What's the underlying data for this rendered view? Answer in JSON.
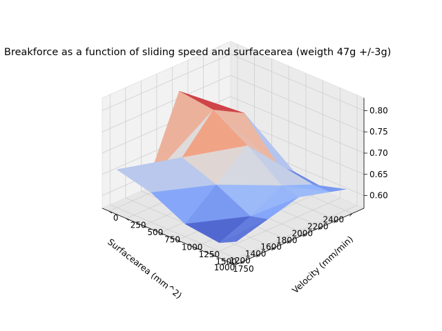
{
  "chart_data": {
    "type": "surface",
    "title": "Breakforce as a function of sliding speed and surfacearea (weigth 47g +/-3g)",
    "xlabel": "Surfacearea (mm^2)",
    "ylabel": "Velocity (mm/min)",
    "zlabel": "",
    "x_ticks": [
      1000,
      1200,
      1400,
      1600,
      1800,
      2000,
      2200,
      2400
    ],
    "y_ticks": [
      0,
      250,
      500,
      750,
      1000,
      1250,
      1500,
      1750
    ],
    "z_ticks": [
      0.6,
      0.65,
      0.7,
      0.75,
      0.8
    ],
    "xlim": [
      900,
      2550
    ],
    "ylim": [
      -100,
      1850
    ],
    "zlim": [
      0.57,
      0.83
    ],
    "colormap": "coolwarm",
    "grid": true,
    "x": [
      1000,
      1400,
      1800,
      2200,
      2400
    ],
    "y": [
      0,
      500,
      1000,
      1500,
      1750
    ],
    "z": [
      [
        0.66,
        0.6,
        0.78,
        0.72,
        0.66
      ],
      [
        0.64,
        0.69,
        0.77,
        0.73,
        0.66
      ],
      [
        0.6,
        0.66,
        0.72,
        0.64,
        0.61
      ],
      [
        0.59,
        0.62,
        0.66,
        0.63,
        0.6
      ],
      [
        0.61,
        0.63,
        0.65,
        0.63,
        0.62
      ]
    ]
  }
}
